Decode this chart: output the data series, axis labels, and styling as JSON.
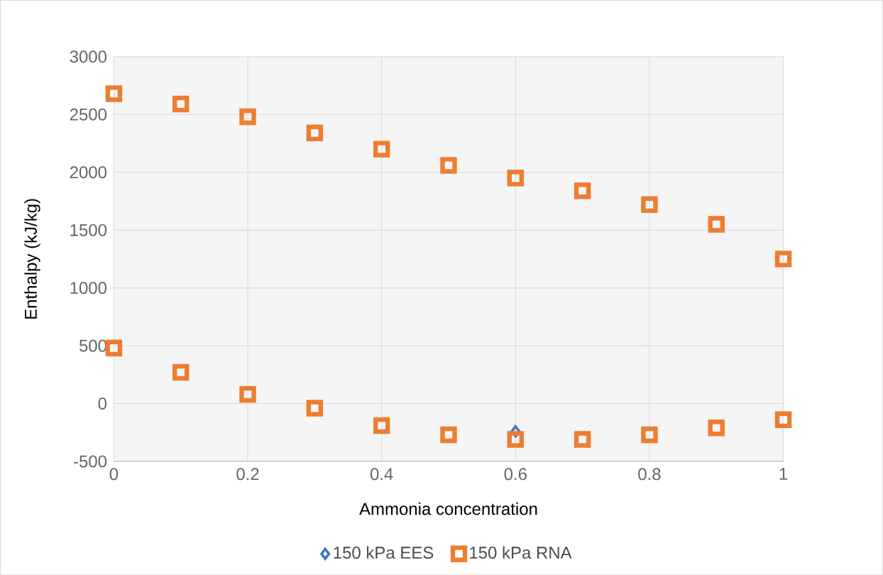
{
  "chart_data": {
    "type": "scatter",
    "xlabel": "Ammonia concentration",
    "ylabel": "Enthalpy (kJ/kg)",
    "xlim": [
      0,
      1
    ],
    "xticks": [
      0,
      0.2,
      0.4,
      0.6,
      0.8,
      1
    ],
    "ylim": [
      -500,
      3000
    ],
    "yticks": [
      -500,
      0,
      500,
      1000,
      1500,
      2000,
      2500,
      3000
    ],
    "grid": true,
    "legend": "bottom",
    "series": [
      {
        "name": "150 kPa EES",
        "color": "#4472c4",
        "marker": "diamond",
        "x": [
          0.6
        ],
        "values": [
          -240
        ]
      },
      {
        "name": "150 kPa RNA",
        "color": "#ed7d31",
        "marker": "square",
        "x": [
          0,
          0.1,
          0.2,
          0.3,
          0.4,
          0.5,
          0.6,
          0.7,
          0.8,
          0.9,
          1,
          0,
          0.1,
          0.2,
          0.3,
          0.4,
          0.5,
          0.6,
          0.7,
          0.8,
          0.9,
          1
        ],
        "values": [
          2680,
          2590,
          2480,
          2340,
          2200,
          2060,
          1950,
          1840,
          1720,
          1550,
          1250,
          480,
          270,
          80,
          -40,
          -190,
          -270,
          -310,
          -310,
          -270,
          -210,
          -140
        ]
      }
    ]
  }
}
